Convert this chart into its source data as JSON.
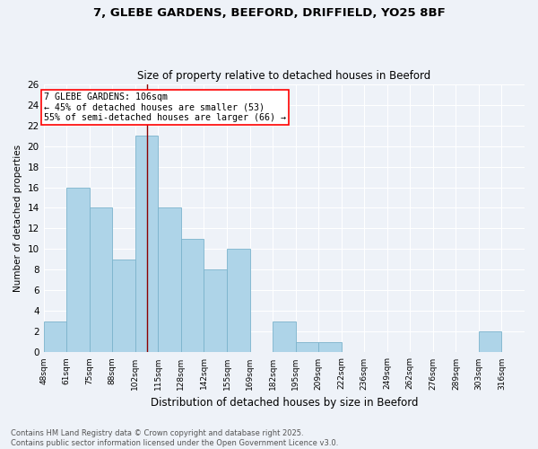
{
  "title1": "7, GLEBE GARDENS, BEEFORD, DRIFFIELD, YO25 8BF",
  "title2": "Size of property relative to detached houses in Beeford",
  "xlabel": "Distribution of detached houses by size in Beeford",
  "ylabel": "Number of detached properties",
  "categories": [
    "48sqm",
    "61sqm",
    "75sqm",
    "88sqm",
    "102sqm",
    "115sqm",
    "128sqm",
    "142sqm",
    "155sqm",
    "169sqm",
    "182sqm",
    "195sqm",
    "209sqm",
    "222sqm",
    "236sqm",
    "249sqm",
    "262sqm",
    "276sqm",
    "289sqm",
    "303sqm",
    "316sqm"
  ],
  "counts": [
    3,
    16,
    14,
    9,
    21,
    14,
    11,
    8,
    10,
    0,
    3,
    1,
    1,
    0,
    0,
    0,
    0,
    0,
    0,
    2,
    0
  ],
  "bar_color": "#aed4e8",
  "bar_edge_color": "#7bb3cc",
  "vline_position": 4.5,
  "vline_color": "#8b0000",
  "annotation_text": "7 GLEBE GARDENS: 106sqm\n← 45% of detached houses are smaller (53)\n55% of semi-detached houses are larger (66) →",
  "annotation_box_color": "white",
  "annotation_box_edge": "red",
  "ylim": [
    0,
    26
  ],
  "yticks": [
    0,
    2,
    4,
    6,
    8,
    10,
    12,
    14,
    16,
    18,
    20,
    22,
    24,
    26
  ],
  "footer": "Contains HM Land Registry data © Crown copyright and database right 2025.\nContains public sector information licensed under the Open Government Licence v3.0.",
  "bg_color": "#eef2f8",
  "fig_width": 6.0,
  "fig_height": 5.0,
  "dpi": 100
}
